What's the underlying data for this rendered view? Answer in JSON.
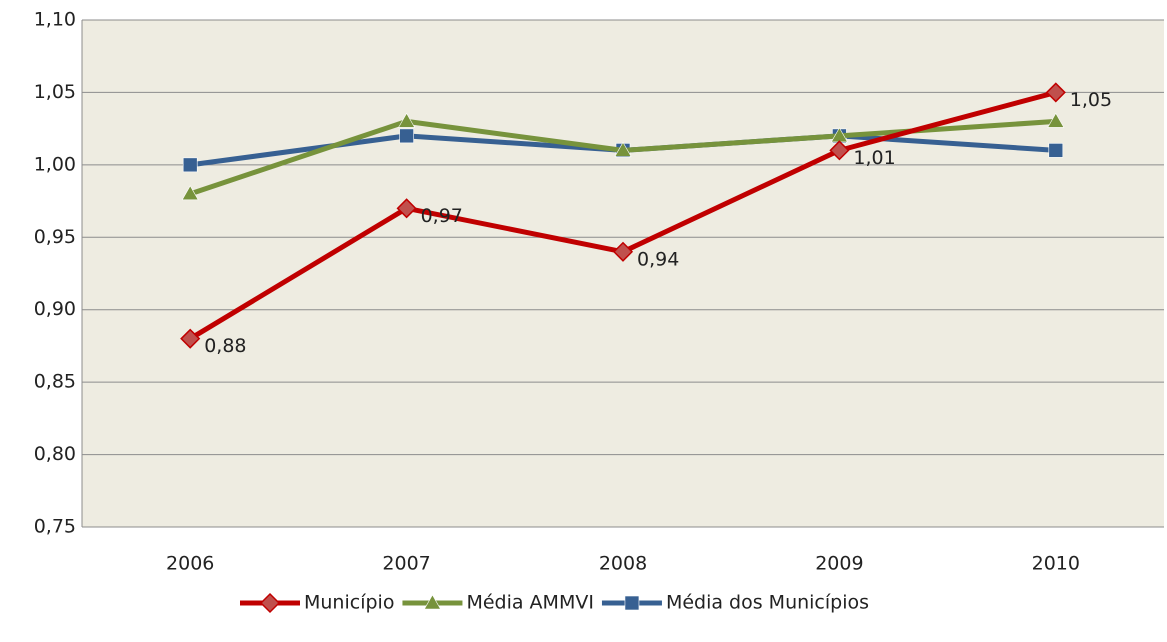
{
  "chart_data": {
    "type": "line",
    "categories": [
      "2006",
      "2007",
      "2008",
      "2009",
      "2010"
    ],
    "series": [
      {
        "name": "Município",
        "color": "#c00000",
        "marker": "diamond",
        "values": [
          0.88,
          0.97,
          0.94,
          1.01,
          1.05
        ],
        "value_labels": [
          "0,88",
          "0,97",
          "0,94",
          "1,01",
          "1,05"
        ]
      },
      {
        "name": "Média AMMVI",
        "color": "#77933c",
        "marker": "triangle",
        "values": [
          0.98,
          1.03,
          1.01,
          1.02,
          1.03
        ]
      },
      {
        "name": "Média dos Municípios",
        "color": "#376092",
        "marker": "square",
        "values": [
          1.0,
          1.02,
          1.01,
          1.02,
          1.01
        ]
      }
    ],
    "ylim": [
      0.75,
      1.1
    ],
    "yticks": [
      {
        "value": 0.75,
        "label": "0,75"
      },
      {
        "value": 0.8,
        "label": "0,80"
      },
      {
        "value": 0.85,
        "label": "0,85"
      },
      {
        "value": 0.9,
        "label": "0,90"
      },
      {
        "value": 0.95,
        "label": "0,95"
      },
      {
        "value": 1.0,
        "label": "1,00"
      },
      {
        "value": 1.05,
        "label": "1,05"
      },
      {
        "value": 1.1,
        "label": "1,10"
      }
    ],
    "grid": true,
    "legend": "bottom"
  }
}
